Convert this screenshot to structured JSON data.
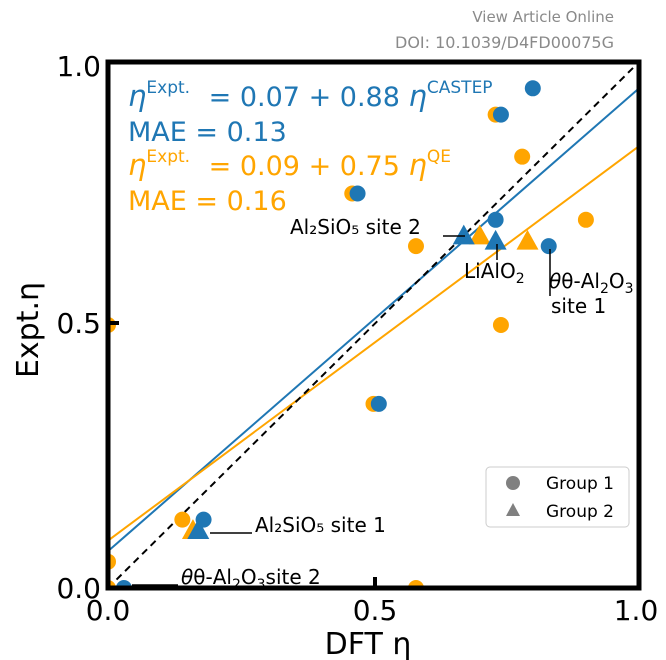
{
  "header": {
    "view_online": "View Article Online",
    "doi": "DOI: 10.1039/D4FD00075G"
  },
  "colors": {
    "castep": "#1f77b4",
    "qe": "#ffa500",
    "parity": "#000000",
    "group_marker": "#808080"
  },
  "chart_data": {
    "type": "scatter",
    "xlabel": "DFT η",
    "ylabel": "Expt.η",
    "xlim": [
      0.0,
      1.0
    ],
    "ylim": [
      0.0,
      1.0
    ],
    "xticks": [
      "0.0",
      "0.5",
      "1.0"
    ],
    "yticks": [
      "0.0",
      "0.5",
      "1.0"
    ],
    "grid": false,
    "legend_position": "lower-right",
    "legend": [
      {
        "label": "Group 1",
        "marker": "circle"
      },
      {
        "label": "Group 2",
        "marker": "triangle"
      }
    ],
    "fits": [
      {
        "method": "CASTEP",
        "intercept": 0.07,
        "slope": 0.88,
        "mae": "0.13",
        "color": "#1f77b4"
      },
      {
        "method": "QE",
        "intercept": 0.09,
        "slope": 0.75,
        "mae": "0.16",
        "color": "#ffa500"
      }
    ],
    "parity_line": true,
    "series": [
      {
        "method": "CASTEP",
        "group": "Group 1",
        "color": "#1f77b4",
        "marker": "circle",
        "points": [
          [
            0.03,
            0.0
          ],
          [
            0.18,
            0.13
          ],
          [
            0.47,
            0.75
          ],
          [
            0.51,
            0.35
          ],
          [
            0.74,
            0.9
          ],
          [
            0.73,
            0.7
          ],
          [
            0.8,
            0.95
          ],
          [
            0.83,
            0.65
          ]
        ]
      },
      {
        "method": "QE",
        "group": "Group 1",
        "color": "#ffa500",
        "marker": "circle",
        "points": [
          [
            0.0,
            0.0
          ],
          [
            0.0,
            0.05
          ],
          [
            0.0,
            0.5
          ],
          [
            0.14,
            0.13
          ],
          [
            0.46,
            0.75
          ],
          [
            0.5,
            0.35
          ],
          [
            0.58,
            0.0
          ],
          [
            0.58,
            0.65
          ],
          [
            0.73,
            0.9
          ],
          [
            0.74,
            0.5
          ],
          [
            0.78,
            0.82
          ],
          [
            0.9,
            0.7
          ]
        ]
      },
      {
        "method": "CASTEP",
        "group": "Group 2",
        "color": "#1f77b4",
        "marker": "triangle",
        "points": [
          [
            0.17,
            0.11
          ],
          [
            0.67,
            0.67
          ],
          [
            0.73,
            0.66
          ]
        ]
      },
      {
        "method": "QE",
        "group": "Group 2",
        "color": "#ffa500",
        "marker": "triangle",
        "points": [
          [
            0.16,
            0.11
          ],
          [
            0.7,
            0.67
          ],
          [
            0.79,
            0.66
          ]
        ]
      }
    ],
    "annotations": {
      "t_al2o3_1_name": "θ-Al",
      "t_al2o3_1_tail": "site 1",
      "al2sio5_2": "Al₂SiO₅ site 2",
      "lialo2_label": "LiAlO",
      "al2sio5_1": "Al₂SiO₅ site 1",
      "t_al2o3_2_name": "θ-Al",
      "t_al2o3_2_tail": "site 2"
    }
  }
}
